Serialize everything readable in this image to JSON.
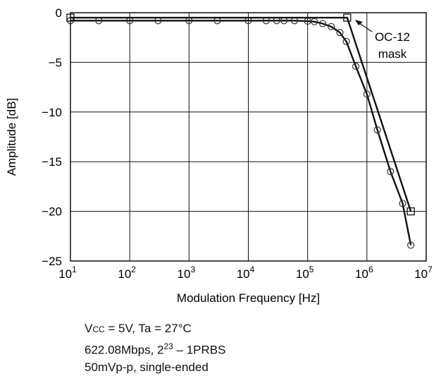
{
  "chart_data": {
    "type": "line",
    "xscale": "log",
    "xlim": [
      10,
      10000000
    ],
    "ylim": [
      -25,
      0
    ],
    "xlabel": "Modulation Frequency [Hz]",
    "ylabel": "Amplitude [dB]",
    "grid": true,
    "x_ticks": [
      {
        "base": "10",
        "exp": "1"
      },
      {
        "base": "10",
        "exp": "2"
      },
      {
        "base": "10",
        "exp": "3"
      },
      {
        "base": "10",
        "exp": "4"
      },
      {
        "base": "10",
        "exp": "5"
      },
      {
        "base": "10",
        "exp": "6"
      },
      {
        "base": "10",
        "exp": "7"
      }
    ],
    "y_ticks": [
      "0",
      "−5",
      "−10",
      "−15",
      "−20",
      "−25"
    ],
    "series": [
      {
        "name": "",
        "marker": "circle",
        "style": "line",
        "x": [
          10,
          30,
          100,
          300,
          1000,
          3000,
          10000,
          20000,
          30000,
          40000,
          60000,
          100000,
          130000,
          180000,
          250000,
          350000,
          450000,
          650000,
          1000000,
          1500000,
          2500000,
          4000000,
          5500000
        ],
        "y": [
          -0.8,
          -0.8,
          -0.8,
          -0.8,
          -0.8,
          -0.8,
          -0.8,
          -0.8,
          -0.8,
          -0.8,
          -0.8,
          -0.85,
          -0.9,
          -1.1,
          -1.4,
          -2.0,
          -2.9,
          -5.4,
          -8.2,
          -11.8,
          -16.0,
          -19.2,
          -23.4
        ]
      },
      {
        "name": "OC-12 mask",
        "marker": "square",
        "style": "line",
        "x": [
          10,
          465000,
          5500000
        ],
        "y": [
          -0.5,
          -0.5,
          -20.0
        ]
      }
    ],
    "annotations": [
      {
        "lines": [
          "OC-12",
          "mask"
        ],
        "target_series": "OC-12 mask"
      }
    ]
  },
  "notes": {
    "line1": {
      "v": "V",
      "sub": "CC",
      "rest": " = 5V, Ta = 27°C"
    },
    "line2": {
      "pre": "622.08Mbps, 2",
      "sup": "23",
      "post": " – 1PRBS"
    },
    "line3": "50mVp-p, single-ended"
  }
}
